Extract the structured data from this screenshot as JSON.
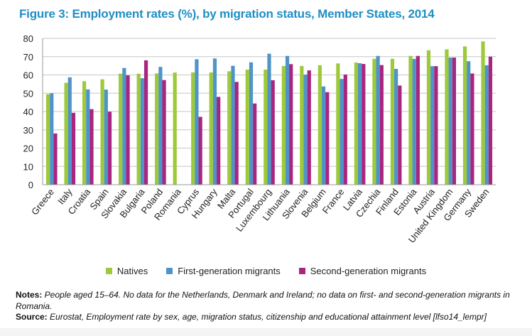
{
  "header": {
    "title": "Figure 3: Employment rates (%), by migration status, Member States, 2014"
  },
  "colors": {
    "natives": "#9dc93a",
    "first_gen": "#4f94c8",
    "second_gen": "#a8267f",
    "title": "#1f8ec5",
    "grid": "#d0d0d0"
  },
  "chart_data": {
    "type": "bar",
    "title": "Figure 3: Employment rates (%), by migration status, Member States, 2014",
    "xlabel": "",
    "ylabel": "",
    "ylim": [
      0,
      80
    ],
    "yticks": [
      0,
      10,
      20,
      30,
      40,
      50,
      60,
      70,
      80
    ],
    "grid": true,
    "legend_position": "bottom",
    "categories": [
      "Greece",
      "Italy",
      "Croatia",
      "Spain",
      "Slovakia",
      "Bulgaria",
      "Poland",
      "Romania",
      "Cyprus",
      "Hungary",
      "Malta",
      "Portugal",
      "Luxembourg",
      "Lithuania",
      "Slovenia",
      "Belgium",
      "France",
      "Latvia",
      "Czechia",
      "Finland",
      "Estonia",
      "Austria",
      "United Kingdom",
      "Germany",
      "Sweden"
    ],
    "series": [
      {
        "name": "Natives",
        "values": [
          49.5,
          55.7,
          56.6,
          57.6,
          60.7,
          60.7,
          60.8,
          61.3,
          61.4,
          61.4,
          62.0,
          62.9,
          62.9,
          64.9,
          64.9,
          65.3,
          66.3,
          66.8,
          68.8,
          68.8,
          70.4,
          73.5,
          74.0,
          75.6,
          78.3
        ]
      },
      {
        "name": "First-generation migrants",
        "values": [
          50.0,
          58.7,
          52.1,
          52.0,
          63.8,
          58.2,
          64.4,
          null,
          68.6,
          69.0,
          65.0,
          66.9,
          71.6,
          70.4,
          60.2,
          53.7,
          57.8,
          66.4,
          70.4,
          63.3,
          68.8,
          64.8,
          69.5,
          67.5,
          65.3
        ]
      },
      {
        "name": "Second-generation migrants",
        "values": [
          28.0,
          39.3,
          41.3,
          39.9,
          59.8,
          68.0,
          57.2,
          null,
          37.1,
          48.0,
          56.2,
          44.4,
          57.1,
          65.9,
          62.5,
          50.6,
          60.2,
          66.0,
          65.4,
          54.2,
          70.4,
          64.8,
          69.5,
          60.8,
          70.0
        ]
      }
    ]
  },
  "legend": {
    "items": [
      "Natives",
      "First-generation migrants",
      "Second-generation migrants"
    ]
  },
  "notes": {
    "notes_label": "Notes:",
    "notes_text": " People aged 15–64. No data for the Netherlands, Denmark and Ireland; no data on first- and second-generation migrants in Romania.",
    "source_label": "Source:",
    "source_text": " Eurostat, Employment rate by sex, age, migration status, citizenship and educational attainment level [lfso14_lempr]"
  }
}
